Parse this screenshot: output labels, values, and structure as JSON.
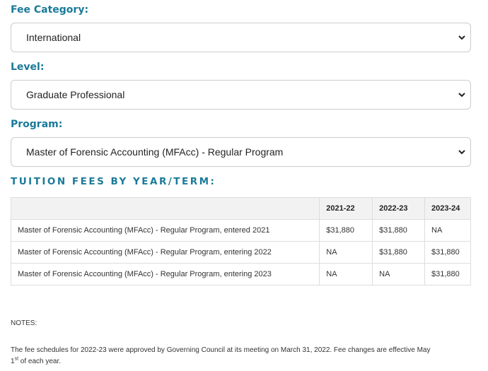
{
  "form": {
    "fee_category": {
      "label": "Fee Category:",
      "value": "International"
    },
    "level": {
      "label": "Level:",
      "value": "Graduate Professional"
    },
    "program": {
      "label": "Program:",
      "value": "Master of Forensic Accounting (MFAcc) - Regular Program"
    }
  },
  "section_title": "TUITION FEES BY YEAR/TERM:",
  "table": {
    "headers": [
      "",
      "2021-22",
      "2022-23",
      "2023-24"
    ],
    "rows": [
      [
        "Master of Forensic Accounting (MFAcc) - Regular Program, entered 2021",
        "$31,880",
        "$31,880",
        "NA"
      ],
      [
        "Master of Forensic Accounting (MFAcc) - Regular Program, entering 2022",
        "NA",
        "$31,880",
        "$31,880"
      ],
      [
        "Master of Forensic Accounting (MFAcc) - Regular Program, entering 2023",
        "NA",
        "NA",
        "$31,880"
      ]
    ]
  },
  "notes": {
    "heading": "NOTES:",
    "text_main": "The fee schedules for 2022-23 were approved by Governing Council at its meeting on March 31, 2022.  Fee changes are effective May",
    "text_day": "1",
    "text_sup": "st",
    "text_end": " of each year."
  },
  "icons": {
    "dropdown": "chevron-down-icon"
  },
  "colors": {
    "accent": "#1a7a9a",
    "border": "#cccccc",
    "table_header_bg": "#f2f2f2"
  }
}
